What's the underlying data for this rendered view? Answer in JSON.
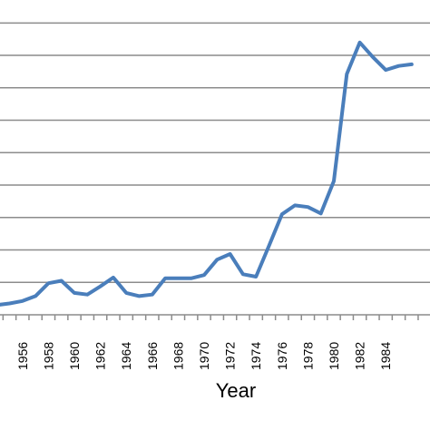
{
  "chart_data": {
    "type": "line",
    "title": "",
    "xlabel": "Year",
    "ylabel": "",
    "x": [
      1954,
      1955,
      1956,
      1957,
      1958,
      1959,
      1960,
      1961,
      1962,
      1963,
      1964,
      1965,
      1966,
      1967,
      1968,
      1969,
      1970,
      1971,
      1972,
      1973,
      1974,
      1975,
      1976,
      1977,
      1978,
      1979,
      1980,
      1981,
      1982,
      1983,
      1984,
      1985,
      1986
    ],
    "x_tick_labels": [
      "1956",
      "1958",
      "1960",
      "1962",
      "1964",
      "1966",
      "1968",
      "1970",
      "1972",
      "1974",
      "1976",
      "1978",
      "1980",
      "1982",
      "1984"
    ],
    "x_tick_values": [
      1956,
      1958,
      1960,
      1962,
      1964,
      1966,
      1968,
      1970,
      1972,
      1974,
      1976,
      1978,
      1980,
      1982,
      1984
    ],
    "series": [
      {
        "name": "",
        "color": "#4a7ebb",
        "values": [
          0.6,
          0.7,
          0.85,
          1.15,
          1.95,
          2.1,
          1.35,
          1.25,
          1.75,
          2.3,
          1.35,
          1.15,
          1.25,
          2.25,
          2.25,
          2.25,
          2.45,
          3.4,
          3.75,
          2.5,
          2.35,
          4.25,
          6.2,
          6.75,
          6.65,
          6.25,
          8.25,
          14.85,
          16.8,
          15.9,
          15.1,
          15.35,
          15.45
        ]
      }
    ],
    "xlim": [
      1954.5,
      1986.3
    ],
    "ylim": [
      0,
      17.85
    ],
    "y_gridlines": [
      0,
      2,
      4,
      6,
      8,
      10,
      12,
      14,
      16,
      18
    ],
    "grid": true,
    "legend": "none"
  }
}
